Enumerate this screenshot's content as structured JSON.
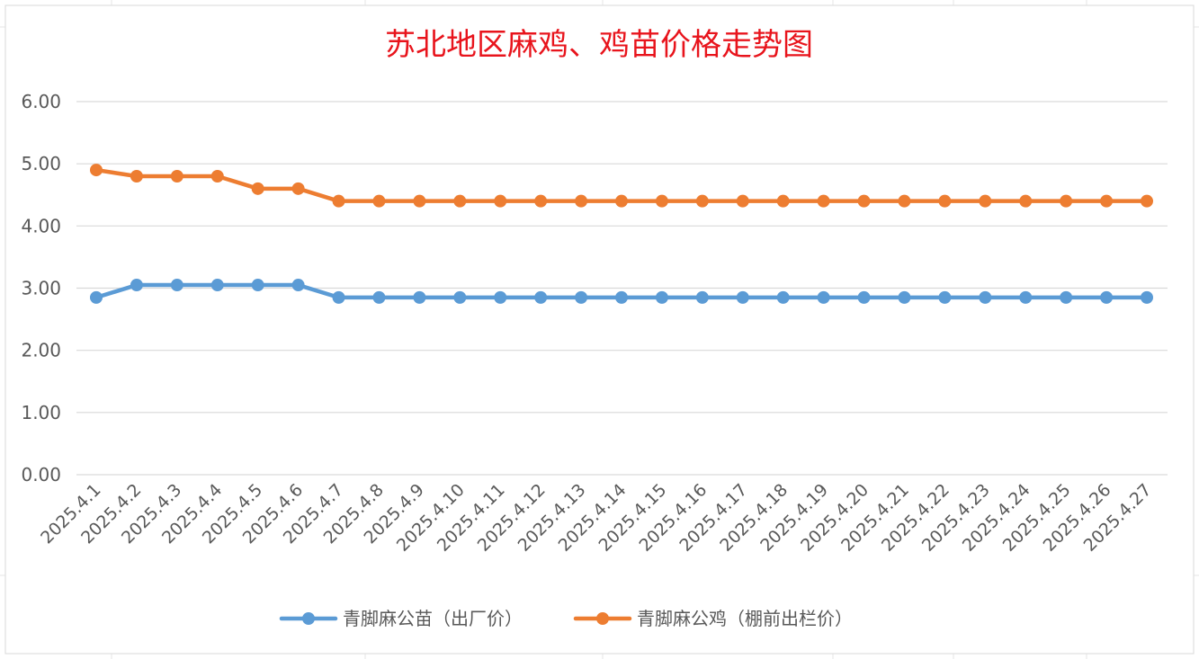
{
  "chart_data": {
    "type": "line",
    "title": "苏北地区麻鸡、鸡苗价格走势图",
    "xlabel": "",
    "ylabel": "",
    "ylim": [
      0,
      6
    ],
    "yticks": [
      "0.00",
      "1.00",
      "2.00",
      "3.00",
      "4.00",
      "5.00",
      "6.00"
    ],
    "grid": true,
    "legend_position": "bottom",
    "categories": [
      "2025.4.1",
      "2025.4.2",
      "2025.4.3",
      "2025.4.4",
      "2025.4.5",
      "2025.4.6",
      "2025.4.7",
      "2025.4.8",
      "2025.4.9",
      "2025.4.10",
      "2025.4.11",
      "2025.4.12",
      "2025.4.13",
      "2025.4.14",
      "2025.4.15",
      "2025.4.16",
      "2025.4.17",
      "2025.4.18",
      "2025.4.19",
      "2025.4.20",
      "2025.4.21",
      "2025.4.22",
      "2025.4.23",
      "2025.4.24",
      "2025.4.25",
      "2025.4.26",
      "2025.4.27"
    ],
    "series": [
      {
        "name": "青脚麻公苗（出厂价）",
        "color": "#5b9bd5",
        "values": [
          2.85,
          3.05,
          3.05,
          3.05,
          3.05,
          3.05,
          2.85,
          2.85,
          2.85,
          2.85,
          2.85,
          2.85,
          2.85,
          2.85,
          2.85,
          2.85,
          2.85,
          2.85,
          2.85,
          2.85,
          2.85,
          2.85,
          2.85,
          2.85,
          2.85,
          2.85,
          2.85
        ]
      },
      {
        "name": "青脚麻公鸡（棚前出栏价）",
        "color": "#ed7d31",
        "values": [
          4.9,
          4.8,
          4.8,
          4.8,
          4.6,
          4.6,
          4.4,
          4.4,
          4.4,
          4.4,
          4.4,
          4.4,
          4.4,
          4.4,
          4.4,
          4.4,
          4.4,
          4.4,
          4.4,
          4.4,
          4.4,
          4.4,
          4.4,
          4.4,
          4.4,
          4.4,
          4.4
        ]
      }
    ]
  }
}
